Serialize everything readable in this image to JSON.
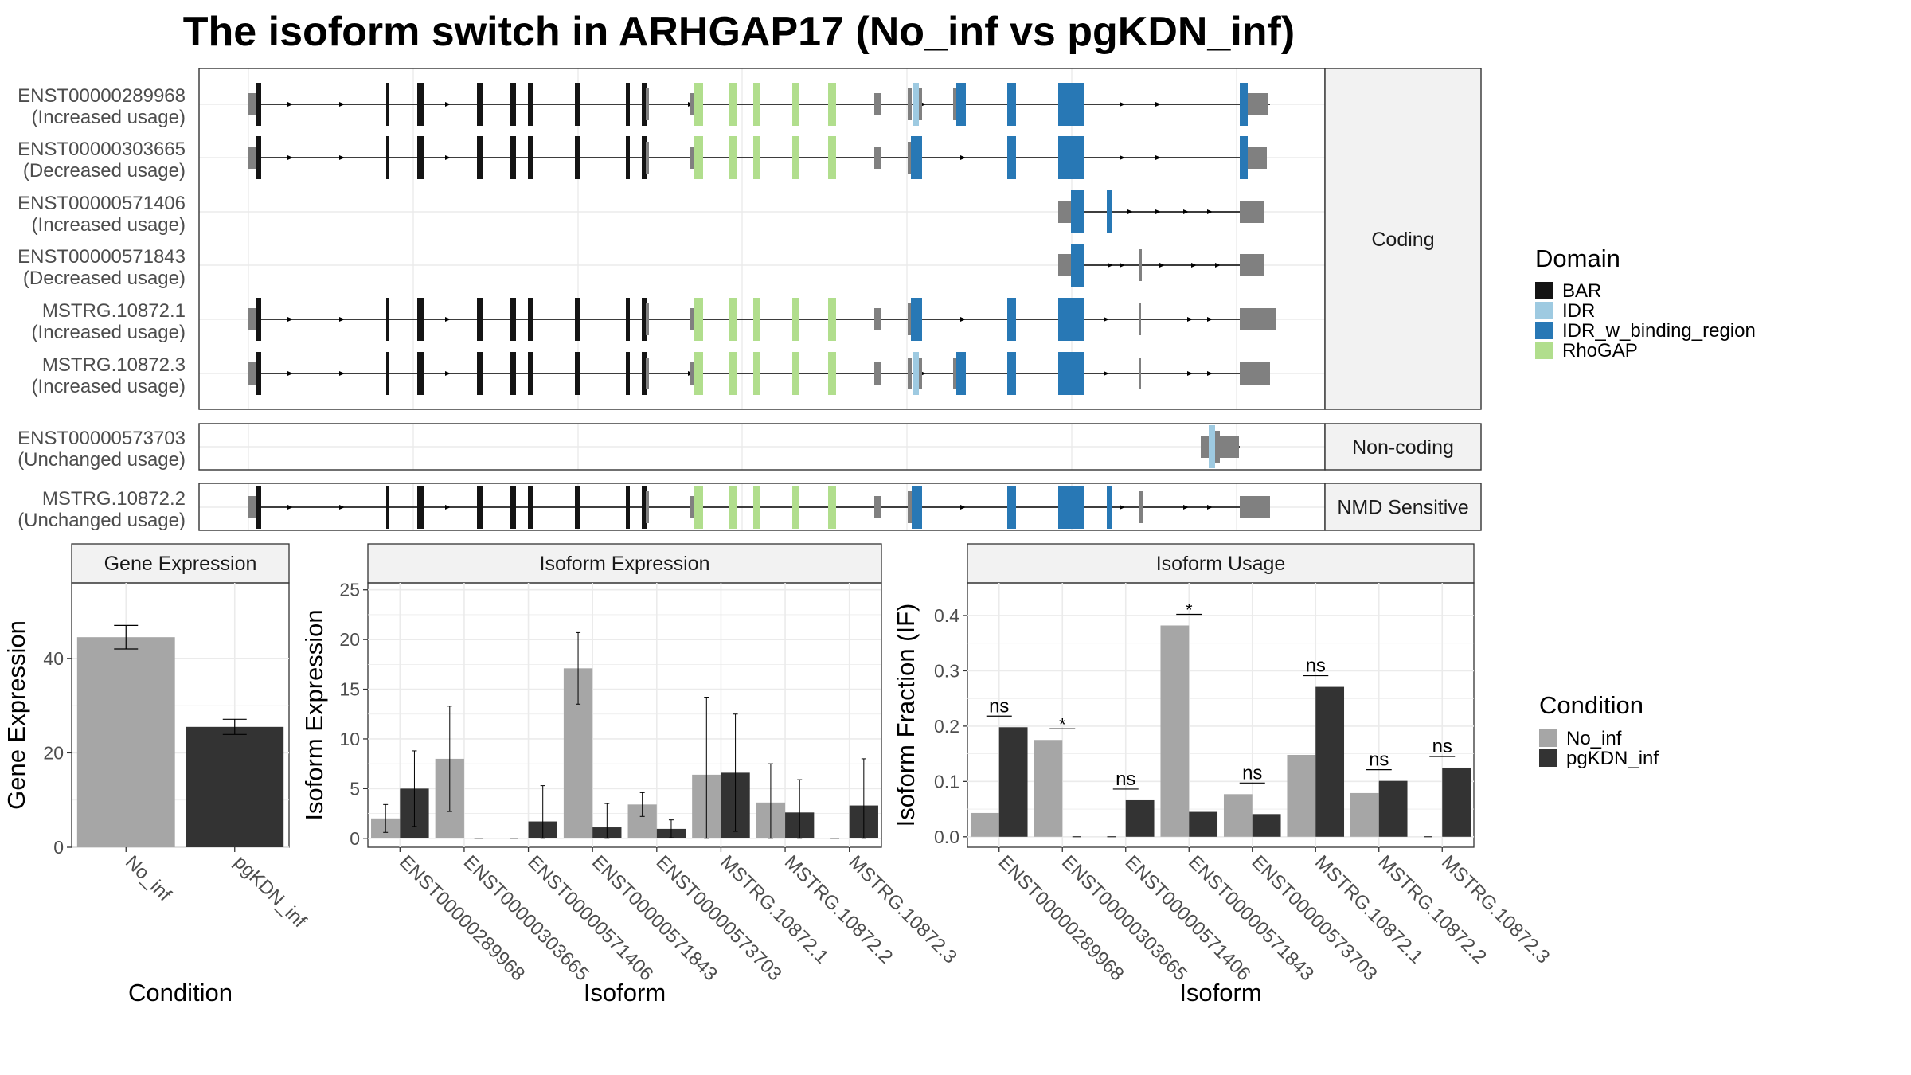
{
  "title": "The isoform switch in ARHGAP17 (No_inf vs pgKDN_inf)",
  "colors": {
    "BAR": "#141414",
    "IDR": "#9ecae1",
    "IDR_w_binding_region": "#2878b5",
    "RhoGAP": "#b1de8d",
    "noDomain": "#808080",
    "No_inf": "#a6a6a6",
    "pgKDN_inf": "#333333",
    "strip": "#f2f2f2",
    "grid": "#ebebeb"
  },
  "transcripts": {
    "panels": [
      {
        "label": "Coding",
        "rows": [
          {
            "id": "ENST00000289968",
            "usage": "(Increased usage)"
          },
          {
            "id": "ENST00000303665",
            "usage": "(Decreased usage)"
          },
          {
            "id": "ENST00000571406",
            "usage": "(Increased usage)"
          },
          {
            "id": "ENST00000571843",
            "usage": "(Decreased usage)"
          },
          {
            "id": "MSTRG.10872.1",
            "usage": "(Increased usage)"
          },
          {
            "id": "MSTRG.10872.3",
            "usage": "(Increased usage)"
          }
        ]
      },
      {
        "label": "Non-coding",
        "rows": [
          {
            "id": "ENST00000573703",
            "usage": "(Unchanged usage)"
          }
        ]
      },
      {
        "label": "NMD Sensitive",
        "rows": [
          {
            "id": "MSTRG.10872.2",
            "usage": "(Unchanged usage)"
          }
        ]
      }
    ]
  },
  "legend_domain": {
    "title": "Domain",
    "items": [
      {
        "label": "BAR",
        "color": "#141414"
      },
      {
        "label": "IDR",
        "color": "#9ecae1"
      },
      {
        "label": "IDR_w_binding_region",
        "color": "#2878b5"
      },
      {
        "label": "RhoGAP",
        "color": "#b1de8d"
      }
    ]
  },
  "legend_condition": {
    "title": "Condition",
    "items": [
      {
        "label": "No_inf",
        "color": "#a6a6a6"
      },
      {
        "label": "pgKDN_inf",
        "color": "#333333"
      }
    ]
  },
  "chart_data": [
    {
      "type": "bar",
      "title": "Gene Expression",
      "xlabel": "Condition",
      "ylabel": "Gene Expression",
      "categories": [
        "No_inf",
        "pgKDN_inf"
      ],
      "values": [
        44.5,
        25.5
      ],
      "errors": [
        2.5,
        1.6
      ],
      "yticks": [
        0,
        20,
        40
      ],
      "ylim": [
        0,
        56
      ]
    },
    {
      "type": "bar",
      "title": "Isoform Expression",
      "xlabel": "Isoform",
      "ylabel": "Isoform Expression",
      "categories": [
        "ENST00000289968",
        "ENST00000303665",
        "ENST00000571406",
        "ENST00000571843",
        "ENST00000573703",
        "MSTRG.10872.1",
        "MSTRG.10872.2",
        "MSTRG.10872.3"
      ],
      "series": [
        {
          "name": "No_inf",
          "values": [
            2.0,
            8.0,
            0.0,
            17.1,
            3.4,
            6.4,
            3.6,
            0.0
          ],
          "errors": [
            1.4,
            5.3,
            0.0,
            3.6,
            1.2,
            7.8,
            3.9,
            0.0
          ]
        },
        {
          "name": "pgKDN_inf",
          "values": [
            5.0,
            0.0,
            1.7,
            1.1,
            0.95,
            6.6,
            2.6,
            3.3
          ],
          "errors": [
            3.8,
            0.0,
            3.6,
            2.4,
            0.9,
            5.9,
            3.3,
            4.7
          ]
        }
      ],
      "yticks": [
        0,
        5,
        10,
        15,
        20,
        25
      ],
      "ylim": [
        -0.9,
        25.7
      ]
    },
    {
      "type": "bar",
      "title": "Isoform Usage",
      "xlabel": "Isoform",
      "ylabel": "Isoform Fraction (IF)",
      "categories": [
        "ENST00000289968",
        "ENST00000303665",
        "ENST00000571406",
        "ENST00000571843",
        "ENST00000573703",
        "MSTRG.10872.1",
        "MSTRG.10872.2",
        "MSTRG.10872.3"
      ],
      "series": [
        {
          "name": "No_inf",
          "values": [
            0.043,
            0.175,
            0.0,
            0.382,
            0.077,
            0.148,
            0.079,
            0.0
          ]
        },
        {
          "name": "pgKDN_inf",
          "values": [
            0.198,
            0.0,
            0.066,
            0.045,
            0.041,
            0.271,
            0.101,
            0.125
          ]
        }
      ],
      "significance": [
        "ns",
        "*",
        "ns",
        "*",
        "ns",
        "ns",
        "ns",
        "ns"
      ],
      "yticks": [
        0.0,
        0.1,
        0.2,
        0.3,
        0.4
      ],
      "ylim": [
        -0.019,
        0.459
      ]
    }
  ]
}
